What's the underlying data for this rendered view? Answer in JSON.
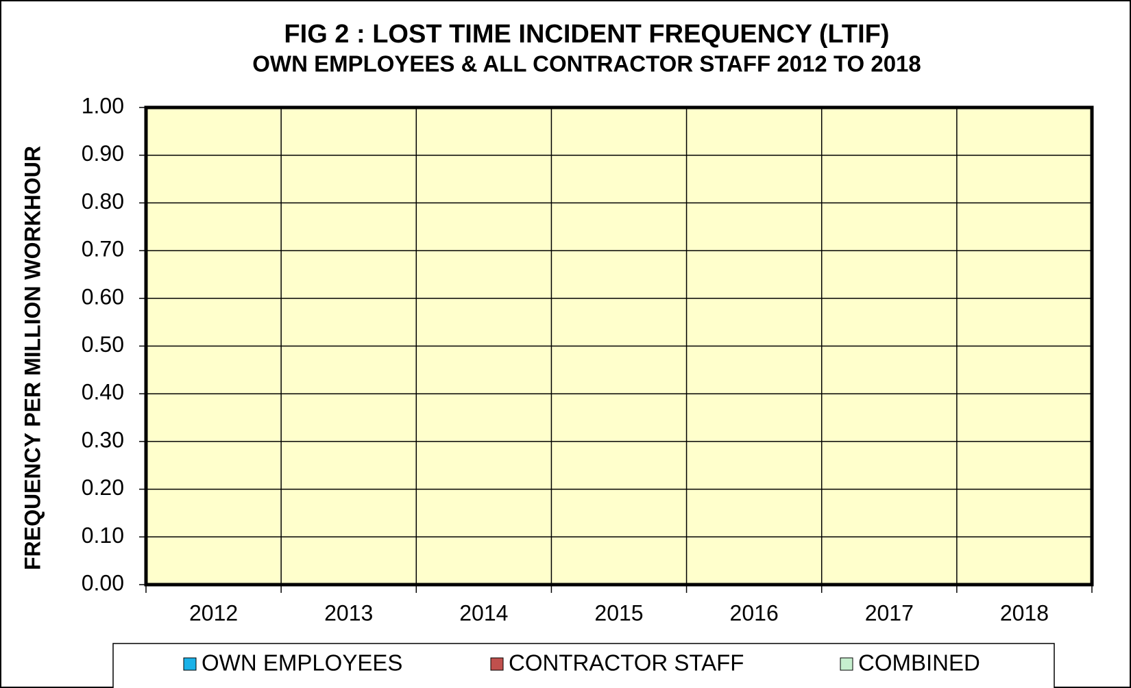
{
  "chart_data": {
    "type": "bar",
    "title": "FIG 2 : LOST TIME INCIDENT FREQUENCY (LTIF)",
    "subtitle": "OWN EMPLOYEES & ALL CONTRACTOR  STAFF 2012 TO 2018",
    "y_label": "FREQUENCY  PER MILLION  WORKHOUR",
    "categories": [
      "2012",
      "2013",
      "2014",
      "2015",
      "2016",
      "2017",
      "2018"
    ],
    "series": [
      {
        "name": "OWN EMPLOYEES",
        "color": "#1ab2e8",
        "values": [
          0,
          0,
          0,
          0,
          0,
          0,
          0
        ]
      },
      {
        "name": "CONTRACTOR STAFF",
        "color": "#c0504d",
        "values": [
          0,
          0,
          0,
          0,
          0,
          0,
          0
        ]
      },
      {
        "name": "COMBINED",
        "color": "#c6efce",
        "values": [
          0,
          0,
          0,
          0,
          0,
          0,
          0
        ]
      }
    ],
    "ylim": [
      0,
      1
    ],
    "yticks": [
      {
        "value": 0,
        "label": "0.00"
      },
      {
        "value": 0.1,
        "label": "0.10"
      },
      {
        "value": 0.2,
        "label": "0.20"
      },
      {
        "value": 0.3,
        "label": "0.30"
      },
      {
        "value": 0.4,
        "label": "0.40"
      },
      {
        "value": 0.5,
        "label": "0.50"
      },
      {
        "value": 0.6,
        "label": "0.60"
      },
      {
        "value": 0.7,
        "label": "0.70"
      },
      {
        "value": 0.8,
        "label": "0.80"
      },
      {
        "value": 0.9,
        "label": "0.90"
      },
      {
        "value": 1,
        "label": "1.00"
      }
    ],
    "grid": true,
    "plot_background": "#ffffcc",
    "legend": "bottom"
  }
}
